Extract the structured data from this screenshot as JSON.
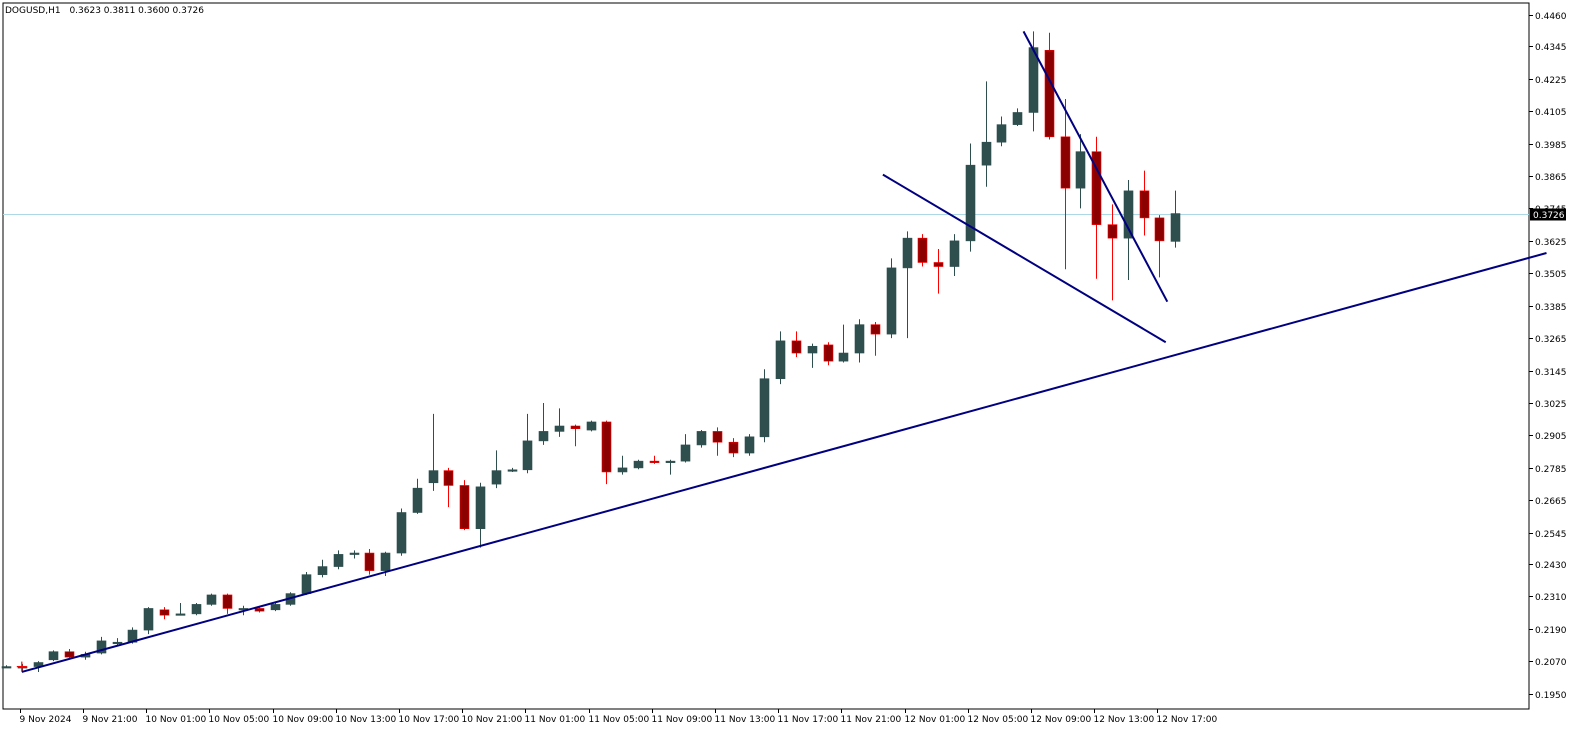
{
  "chart_info": {
    "symbol_timeframe": "DOGUSD,H1",
    "ohlc_values": "0.3623 0.3811 0.3600 0.3726"
  },
  "colors": {
    "background": "#ffffff",
    "frame": "#000000",
    "bull_candle": "#2f4f4f",
    "bear_candle": "#8b0000",
    "bear_wick": "#ff0000",
    "trendline": "#000080",
    "bid_line": "#add8e6",
    "price_tag": "#000000"
  },
  "chart_data": {
    "type": "candlestick",
    "title": "DOGUSD,H1",
    "ylim": [
      0.1893,
      0.4505
    ],
    "y_ticks": [
      "0.4460",
      "0.4345",
      "0.4225",
      "0.4105",
      "0.3985",
      "0.3865",
      "0.3745",
      "0.3625",
      "0.3505",
      "0.3385",
      "0.3265",
      "0.3145",
      "0.3025",
      "0.2905",
      "0.2785",
      "0.2665",
      "0.2545",
      "0.2430",
      "0.2310",
      "0.2190",
      "0.2070",
      "0.1950"
    ],
    "x_ticks": [
      "9 Nov 2024",
      "9 Nov 21:00",
      "10 Nov 01:00",
      "10 Nov 05:00",
      "10 Nov 09:00",
      "10 Nov 13:00",
      "10 Nov 17:00",
      "10 Nov 21:00",
      "11 Nov 01:00",
      "11 Nov 05:00",
      "11 Nov 09:00",
      "11 Nov 13:00",
      "11 Nov 17:00",
      "11 Nov 21:00",
      "12 Nov 01:00",
      "12 Nov 05:00",
      "12 Nov 09:00",
      "12 Nov 13:00",
      "12 Nov 17:00"
    ],
    "bid_price": 0.3726,
    "bid_label": "0.3726",
    "candles": [
      {
        "o": 0.205,
        "h": 0.2055,
        "l": 0.2045,
        "c": 0.205
      },
      {
        "o": 0.205,
        "h": 0.206,
        "l": 0.203,
        "c": 0.205
      },
      {
        "o": 0.205,
        "h": 0.207,
        "l": 0.203,
        "c": 0.2065
      },
      {
        "o": 0.2075,
        "h": 0.211,
        "l": 0.207,
        "c": 0.2105
      },
      {
        "o": 0.2105,
        "h": 0.2115,
        "l": 0.208,
        "c": 0.2085
      },
      {
        "o": 0.2085,
        "h": 0.2105,
        "l": 0.2075,
        "c": 0.2095
      },
      {
        "o": 0.21,
        "h": 0.216,
        "l": 0.2095,
        "c": 0.2145
      },
      {
        "o": 0.214,
        "h": 0.2155,
        "l": 0.213,
        "c": 0.214
      },
      {
        "o": 0.214,
        "h": 0.2195,
        "l": 0.2135,
        "c": 0.2185
      },
      {
        "o": 0.2185,
        "h": 0.227,
        "l": 0.217,
        "c": 0.2265
      },
      {
        "o": 0.226,
        "h": 0.227,
        "l": 0.2225,
        "c": 0.224
      },
      {
        "o": 0.2245,
        "h": 0.2285,
        "l": 0.224,
        "c": 0.2245
      },
      {
        "o": 0.2245,
        "h": 0.2285,
        "l": 0.224,
        "c": 0.228
      },
      {
        "o": 0.228,
        "h": 0.232,
        "l": 0.2275,
        "c": 0.2315
      },
      {
        "o": 0.2315,
        "h": 0.232,
        "l": 0.2245,
        "c": 0.2265
      },
      {
        "o": 0.226,
        "h": 0.2275,
        "l": 0.224,
        "c": 0.2265
      },
      {
        "o": 0.2265,
        "h": 0.227,
        "l": 0.225,
        "c": 0.2255
      },
      {
        "o": 0.226,
        "h": 0.2285,
        "l": 0.2255,
        "c": 0.228
      },
      {
        "o": 0.228,
        "h": 0.2325,
        "l": 0.2275,
        "c": 0.232
      },
      {
        "o": 0.232,
        "h": 0.24,
        "l": 0.2315,
        "c": 0.239
      },
      {
        "o": 0.239,
        "h": 0.2445,
        "l": 0.238,
        "c": 0.242
      },
      {
        "o": 0.242,
        "h": 0.248,
        "l": 0.241,
        "c": 0.2465
      },
      {
        "o": 0.2465,
        "h": 0.248,
        "l": 0.245,
        "c": 0.247
      },
      {
        "o": 0.247,
        "h": 0.2485,
        "l": 0.239,
        "c": 0.2405
      },
      {
        "o": 0.2405,
        "h": 0.2475,
        "l": 0.2385,
        "c": 0.247
      },
      {
        "o": 0.247,
        "h": 0.2635,
        "l": 0.246,
        "c": 0.262
      },
      {
        "o": 0.262,
        "h": 0.2745,
        "l": 0.2615,
        "c": 0.271
      },
      {
        "o": 0.273,
        "h": 0.2985,
        "l": 0.27,
        "c": 0.2775
      },
      {
        "o": 0.2775,
        "h": 0.2785,
        "l": 0.264,
        "c": 0.272
      },
      {
        "o": 0.272,
        "h": 0.274,
        "l": 0.2555,
        "c": 0.256
      },
      {
        "o": 0.256,
        "h": 0.273,
        "l": 0.249,
        "c": 0.2715
      },
      {
        "o": 0.2725,
        "h": 0.285,
        "l": 0.271,
        "c": 0.2775
      },
      {
        "o": 0.2775,
        "h": 0.2785,
        "l": 0.277,
        "c": 0.2778
      },
      {
        "o": 0.2778,
        "h": 0.2985,
        "l": 0.2765,
        "c": 0.2885
      },
      {
        "o": 0.2885,
        "h": 0.3025,
        "l": 0.287,
        "c": 0.292
      },
      {
        "o": 0.292,
        "h": 0.3005,
        "l": 0.29,
        "c": 0.294
      },
      {
        "o": 0.294,
        "h": 0.2945,
        "l": 0.2865,
        "c": 0.293
      },
      {
        "o": 0.2925,
        "h": 0.296,
        "l": 0.292,
        "c": 0.2955
      },
      {
        "o": 0.2955,
        "h": 0.296,
        "l": 0.2725,
        "c": 0.277
      },
      {
        "o": 0.277,
        "h": 0.283,
        "l": 0.276,
        "c": 0.2785
      },
      {
        "o": 0.2785,
        "h": 0.2815,
        "l": 0.278,
        "c": 0.281
      },
      {
        "o": 0.281,
        "h": 0.283,
        "l": 0.28,
        "c": 0.2805
      },
      {
        "o": 0.2805,
        "h": 0.2815,
        "l": 0.276,
        "c": 0.281
      },
      {
        "o": 0.281,
        "h": 0.291,
        "l": 0.2805,
        "c": 0.287
      },
      {
        "o": 0.287,
        "h": 0.2925,
        "l": 0.286,
        "c": 0.292
      },
      {
        "o": 0.292,
        "h": 0.2935,
        "l": 0.283,
        "c": 0.288
      },
      {
        "o": 0.288,
        "h": 0.2895,
        "l": 0.2825,
        "c": 0.284
      },
      {
        "o": 0.284,
        "h": 0.291,
        "l": 0.283,
        "c": 0.29
      },
      {
        "o": 0.29,
        "h": 0.315,
        "l": 0.288,
        "c": 0.3115
      },
      {
        "o": 0.3115,
        "h": 0.329,
        "l": 0.3095,
        "c": 0.3255
      },
      {
        "o": 0.3255,
        "h": 0.329,
        "l": 0.3195,
        "c": 0.321
      },
      {
        "o": 0.321,
        "h": 0.3245,
        "l": 0.3155,
        "c": 0.3235
      },
      {
        "o": 0.324,
        "h": 0.325,
        "l": 0.3165,
        "c": 0.318
      },
      {
        "o": 0.318,
        "h": 0.3315,
        "l": 0.3175,
        "c": 0.321
      },
      {
        "o": 0.321,
        "h": 0.3335,
        "l": 0.3175,
        "c": 0.3315
      },
      {
        "o": 0.3315,
        "h": 0.3325,
        "l": 0.32,
        "c": 0.328
      },
      {
        "o": 0.328,
        "h": 0.356,
        "l": 0.3265,
        "c": 0.3525
      },
      {
        "o": 0.3525,
        "h": 0.366,
        "l": 0.3265,
        "c": 0.3635
      },
      {
        "o": 0.3635,
        "h": 0.365,
        "l": 0.353,
        "c": 0.3545
      },
      {
        "o": 0.3545,
        "h": 0.3595,
        "l": 0.343,
        "c": 0.353
      },
      {
        "o": 0.353,
        "h": 0.365,
        "l": 0.3495,
        "c": 0.3625
      },
      {
        "o": 0.3625,
        "h": 0.3985,
        "l": 0.3585,
        "c": 0.3905
      },
      {
        "o": 0.3905,
        "h": 0.4215,
        "l": 0.3825,
        "c": 0.399
      },
      {
        "o": 0.399,
        "h": 0.4085,
        "l": 0.3975,
        "c": 0.4055
      },
      {
        "o": 0.4055,
        "h": 0.4115,
        "l": 0.405,
        "c": 0.41
      },
      {
        "o": 0.41,
        "h": 0.44,
        "l": 0.403,
        "c": 0.434
      },
      {
        "o": 0.433,
        "h": 0.4395,
        "l": 0.4,
        "c": 0.401
      },
      {
        "o": 0.401,
        "h": 0.415,
        "l": 0.352,
        "c": 0.382
      },
      {
        "o": 0.382,
        "h": 0.402,
        "l": 0.3745,
        "c": 0.3955
      },
      {
        "o": 0.3955,
        "h": 0.401,
        "l": 0.3485,
        "c": 0.3685
      },
      {
        "o": 0.3685,
        "h": 0.376,
        "l": 0.3405,
        "c": 0.3635
      },
      {
        "o": 0.3635,
        "h": 0.385,
        "l": 0.348,
        "c": 0.381
      },
      {
        "o": 0.381,
        "h": 0.3885,
        "l": 0.3645,
        "c": 0.371
      },
      {
        "o": 0.371,
        "h": 0.372,
        "l": 0.349,
        "c": 0.3625
      },
      {
        "o": 0.3623,
        "h": 0.3811,
        "l": 0.36,
        "c": 0.3726
      }
    ],
    "tick_cross_markers": [
      {
        "x_index": 1,
        "value": 0.205,
        "color": "#ff0000"
      }
    ],
    "trendlines": [
      {
        "name": "support",
        "from": {
          "x_index": 1,
          "value": 0.203
        },
        "to": {
          "x_index": 97.5,
          "value": 0.358
        }
      },
      {
        "name": "descending-resistance",
        "from": {
          "x_index": 64.4,
          "value": 0.44
        },
        "to": {
          "x_index": 73.5,
          "value": 0.34
        }
      },
      {
        "name": "lower-channel",
        "from": {
          "x_index": 55.5,
          "value": 0.387
        },
        "to": {
          "x_index": 73.4,
          "value": 0.325
        }
      }
    ]
  }
}
